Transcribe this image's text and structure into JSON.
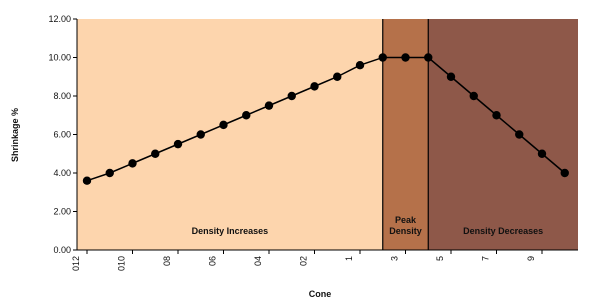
{
  "chart_data": {
    "type": "line",
    "y_label": "Shrinkage %",
    "x_label": "Cone",
    "categories": [
      "012",
      null,
      "010",
      null,
      "08",
      null,
      "06",
      null,
      "04",
      null,
      "02",
      null,
      "1",
      null,
      "3",
      null,
      "5",
      null,
      "7",
      null,
      "9",
      null
    ],
    "series": [
      {
        "name": "Shrinkage",
        "color": "#000000",
        "values": [
          3.6,
          4.0,
          4.5,
          5.0,
          5.5,
          6.0,
          6.5,
          7.0,
          7.5,
          8.0,
          8.5,
          9.0,
          9.6,
          10.0,
          10.0,
          10.0,
          9.0,
          8.0,
          7.0,
          6.0,
          5.0,
          4.0
        ]
      }
    ],
    "ylim": [
      0,
      12
    ],
    "yticks": [
      {
        "value": 0,
        "label": "0.00"
      },
      {
        "value": 2,
        "label": "2.00"
      },
      {
        "value": 4,
        "label": "4.00"
      },
      {
        "value": 6,
        "label": "6.00"
      },
      {
        "value": 8,
        "label": "8.00"
      },
      {
        "value": 10,
        "label": "10.00"
      },
      {
        "value": 12,
        "label": "12.00"
      }
    ],
    "regions": [
      {
        "label": [
          "Density Increases"
        ],
        "color": "#fdd5ad"
      },
      {
        "label": [
          "Peak",
          "Density"
        ],
        "color": "#b5714a"
      },
      {
        "label": [
          "Density Decreases"
        ],
        "color": "#8e5849"
      }
    ]
  }
}
